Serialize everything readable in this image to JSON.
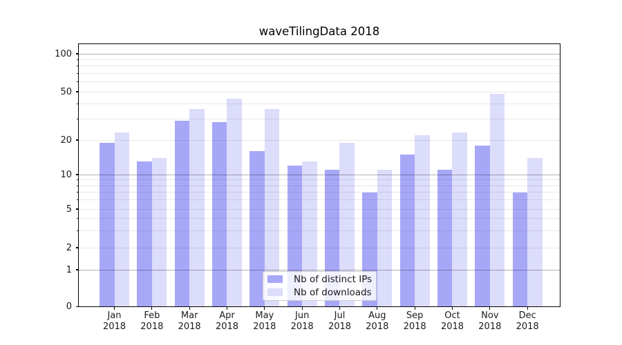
{
  "chart_data": {
    "type": "bar",
    "title": "waveTilingData 2018",
    "categories": [
      "Jan",
      "Feb",
      "Mar",
      "Apr",
      "May",
      "Jun",
      "Jul",
      "Aug",
      "Sep",
      "Oct",
      "Nov",
      "Dec"
    ],
    "category_year_label": "2018",
    "series": [
      {
        "name": "Nb of distinct IPs",
        "color": "#a7a7f8",
        "values": [
          19,
          13,
          29,
          28,
          16,
          12,
          11,
          7,
          15,
          11,
          18,
          7
        ]
      },
      {
        "name": "Nb of downloads",
        "color": "#dcdcfb",
        "values": [
          23,
          14,
          36,
          44,
          36,
          13,
          19,
          11,
          22,
          23,
          48,
          14
        ]
      }
    ],
    "yscale": "symlog",
    "ylim": [
      0,
      125
    ],
    "ytick_labels": [
      0,
      1,
      2,
      5,
      10,
      20,
      50,
      100
    ],
    "major_grid_values": [
      1,
      10,
      100
    ],
    "minor_grid_values": [
      2,
      3,
      4,
      5,
      6,
      7,
      8,
      9,
      20,
      30,
      40,
      50,
      60,
      70,
      80,
      90
    ],
    "grid": true,
    "legend_position": "lower center"
  },
  "colors": {
    "major_grid": "rgba(0,0,0,0.30)",
    "minor_grid": "rgba(0,0,0,0.085)",
    "spine": "#000000",
    "legend_border": "#cccccc",
    "background": "#ffffff"
  }
}
